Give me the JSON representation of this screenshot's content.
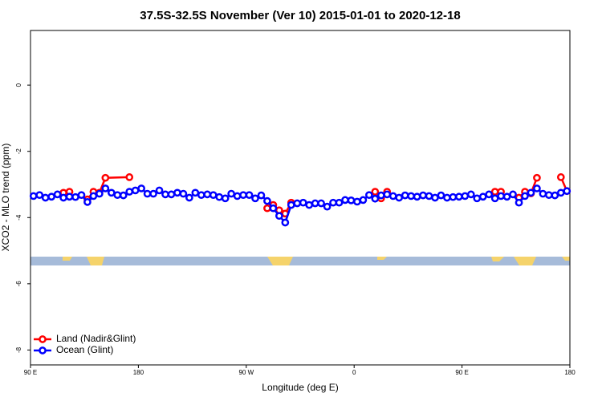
{
  "chart_data": {
    "type": "line",
    "title": "37.5S-32.5S November (Ver 10)   2015-01-01 to 2020-12-18",
    "xlabel": "Longitude (deg E)",
    "ylabel": "XCO2 - MLO trend (ppm)",
    "xlim": [
      90,
      540
    ],
    "ylim": [
      -8.45,
      1.65
    ],
    "xticks": [
      {
        "value": 90,
        "label": "90 E"
      },
      180,
      {
        "value": 270,
        "label": "90 W"
      },
      {
        "value": 360,
        "label": "0"
      },
      {
        "value": 450,
        "label": "90 E"
      },
      {
        "value": 540,
        "label": "180"
      }
    ],
    "yticks": [
      0,
      -2,
      -4,
      -6,
      -8
    ],
    "legend": "bottom-left",
    "series": [
      {
        "name": "Land (Nadir&Glint)",
        "color": "#ff0000",
        "x": [
          117.5,
          122.5,
          127.5,
          137.5,
          142.5,
          147.5,
          152.5,
          172.5,
          177.5,
          287.5,
          292.5,
          297.5,
          302.5,
          307.5,
          312.5,
          377.5,
          382.5,
          387.5,
          392.5,
          477.5,
          482.5,
          487.5,
          497.5,
          502.5,
          507.5,
          512.5,
          517.5,
          532.5,
          537.5
        ],
        "values": [
          -3.25,
          -3.22,
          null,
          -3.45,
          -3.22,
          -3.25,
          -2.8,
          -2.78,
          null,
          -3.72,
          -3.62,
          -3.78,
          -3.88,
          -3.55,
          null,
          -3.22,
          -3.42,
          -3.22,
          null,
          -3.22,
          -3.22,
          null,
          -3.4,
          -3.22,
          -3.27,
          -2.8,
          null,
          -2.78,
          -3.2
        ]
      },
      {
        "name": "Ocean (Glint)",
        "color": "#0000ff",
        "x": [
          92.5,
          97.5,
          102.5,
          107.5,
          112.5,
          117.5,
          122.5,
          127.5,
          132.5,
          137.5,
          142.5,
          147.5,
          152.5,
          157.5,
          162.5,
          167.5,
          172.5,
          177.5,
          182.5,
          187.5,
          192.5,
          197.5,
          202.5,
          207.5,
          212.5,
          217.5,
          222.5,
          227.5,
          232.5,
          237.5,
          242.5,
          247.5,
          252.5,
          257.5,
          262.5,
          267.5,
          272.5,
          277.5,
          282.5,
          287.5,
          292.5,
          297.5,
          302.5,
          307.5,
          312.5,
          317.5,
          322.5,
          327.5,
          332.5,
          337.5,
          342.5,
          347.5,
          352.5,
          357.5,
          362.5,
          367.5,
          372.5,
          377.5,
          382.5,
          387.5,
          392.5,
          397.5,
          402.5,
          407.5,
          412.5,
          417.5,
          422.5,
          427.5,
          432.5,
          437.5,
          442.5,
          447.5,
          452.5,
          457.5,
          462.5,
          467.5,
          472.5,
          477.5,
          482.5,
          487.5,
          492.5,
          497.5,
          502.5,
          507.5,
          512.5,
          517.5,
          522.5,
          527.5,
          532.5,
          537.5
        ],
        "values": [
          -3.35,
          -3.32,
          -3.4,
          -3.37,
          -3.3,
          -3.4,
          -3.37,
          -3.38,
          -3.32,
          -3.53,
          -3.35,
          -3.28,
          -3.12,
          -3.25,
          -3.32,
          -3.33,
          -3.22,
          -3.18,
          -3.12,
          -3.28,
          -3.28,
          -3.18,
          -3.3,
          -3.3,
          -3.25,
          -3.28,
          -3.4,
          -3.25,
          -3.32,
          -3.3,
          -3.32,
          -3.38,
          -3.42,
          -3.28,
          -3.35,
          -3.32,
          -3.32,
          -3.42,
          -3.33,
          -3.5,
          -3.72,
          -3.95,
          -4.15,
          -3.62,
          -3.57,
          -3.55,
          -3.62,
          -3.57,
          -3.57,
          -3.67,
          -3.55,
          -3.55,
          -3.47,
          -3.48,
          -3.52,
          -3.47,
          -3.32,
          -3.43,
          -3.33,
          -3.3,
          -3.35,
          -3.4,
          -3.33,
          -3.35,
          -3.37,
          -3.33,
          -3.35,
          -3.4,
          -3.33,
          -3.4,
          -3.38,
          -3.37,
          -3.35,
          -3.3,
          -3.42,
          -3.37,
          -3.3,
          -3.42,
          -3.35,
          -3.37,
          -3.3,
          -3.55,
          -3.35,
          -3.25,
          -3.12,
          -3.28,
          -3.32,
          -3.33,
          -3.25,
          -3.2
        ]
      }
    ]
  }
}
